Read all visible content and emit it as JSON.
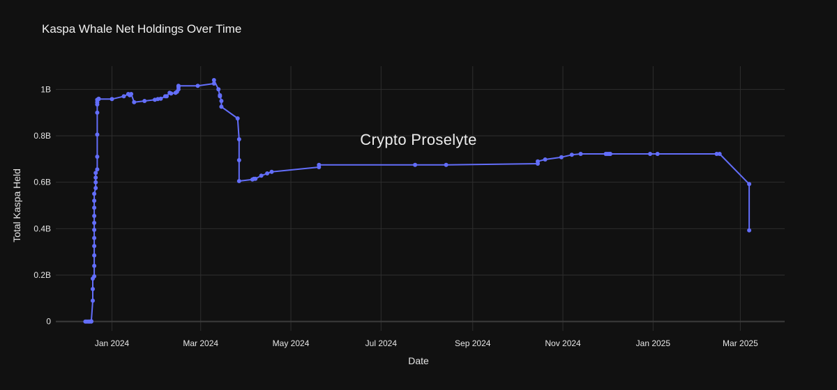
{
  "chart_data": {
    "type": "line",
    "title": "Kaspa Whale Net Holdings Over Time",
    "xlabel": "Date",
    "ylabel": "Total Kaspa Held",
    "watermark": "Crypto Proselyte",
    "grid": true,
    "x_ticks": [
      "Jan 2024",
      "Mar 2024",
      "May 2024",
      "Jul 2024",
      "Sep 2024",
      "Nov 2024",
      "Jan 2025",
      "Mar 2025"
    ],
    "x_tick_dates": [
      "2024-01-01",
      "2024-03-01",
      "2024-05-01",
      "2024-07-01",
      "2024-09-01",
      "2024-11-01",
      "2025-01-01",
      "2025-03-01"
    ],
    "xlim": [
      "2023-11-24",
      "2025-03-31"
    ],
    "y_ticks": [
      "0",
      "0.2B",
      "0.4B",
      "0.6B",
      "0.8B",
      "1B"
    ],
    "y_tick_values": [
      0,
      200000000,
      400000000,
      600000000,
      800000000,
      1000000000
    ],
    "ylim": [
      -40000000,
      1100000000
    ],
    "series": [
      {
        "color": "#636efa",
        "x": [
          "2023-12-14",
          "2023-12-15",
          "2023-12-16",
          "2023-12-17",
          "2023-12-18",
          "2023-12-18",
          "2023-12-19",
          "2023-12-19",
          "2023-12-19",
          "2023-12-20",
          "2023-12-20",
          "2023-12-20",
          "2023-12-20",
          "2023-12-20",
          "2023-12-20",
          "2023-12-20",
          "2023-12-20",
          "2023-12-20",
          "2023-12-20",
          "2023-12-20",
          "2023-12-21",
          "2023-12-21",
          "2023-12-21",
          "2023-12-21",
          "2023-12-22",
          "2023-12-22",
          "2023-12-22",
          "2023-12-22",
          "2023-12-22",
          "2023-12-22",
          "2023-12-22",
          "2023-12-23",
          "2023-12-23",
          "2024-01-01",
          "2024-01-09",
          "2024-01-12",
          "2024-01-13",
          "2024-01-14",
          "2024-01-16",
          "2024-01-23",
          "2024-01-30",
          "2024-02-01",
          "2024-02-03",
          "2024-02-06",
          "2024-02-07",
          "2024-02-09",
          "2024-02-10",
          "2024-02-13",
          "2024-02-14",
          "2024-02-15",
          "2024-02-15",
          "2024-02-15",
          "2024-02-28",
          "2024-03-10",
          "2024-03-10",
          "2024-03-13",
          "2024-03-14",
          "2024-03-14",
          "2024-03-15",
          "2024-03-15",
          "2024-03-26",
          "2024-03-27",
          "2024-03-27",
          "2024-03-27",
          "2024-04-05",
          "2024-04-06",
          "2024-04-07",
          "2024-04-11",
          "2024-04-15",
          "2024-04-18",
          "2024-05-20",
          "2024-05-20",
          "2024-07-24",
          "2024-08-14",
          "2024-10-15",
          "2024-10-15",
          "2024-10-20",
          "2024-10-31",
          "2024-11-07",
          "2024-11-13",
          "2024-11-30",
          "2024-12-01",
          "2024-12-02",
          "2024-12-03",
          "2024-12-03",
          "2024-12-30",
          "2025-01-04",
          "2025-02-13",
          "2025-02-15",
          "2025-03-07",
          "2025-03-07"
        ],
        "y": [
          0,
          0,
          0,
          0,
          0,
          1000000,
          90000000,
          140000000,
          185000000,
          195000000,
          240000000,
          285000000,
          325000000,
          360000000,
          395000000,
          425000000,
          455000000,
          490000000,
          520000000,
          550000000,
          575000000,
          600000000,
          620000000,
          640000000,
          655000000,
          710000000,
          805000000,
          900000000,
          935000000,
          945000000,
          955000000,
          960000000,
          958000000,
          958000000,
          970000000,
          980000000,
          975000000,
          980000000,
          945000000,
          950000000,
          955000000,
          958000000,
          960000000,
          970000000,
          970000000,
          985000000,
          982000000,
          985000000,
          990000000,
          1000000000,
          1010000000,
          1015000000,
          1015000000,
          1025000000,
          1040000000,
          1000000000,
          970000000,
          975000000,
          950000000,
          925000000,
          875000000,
          785000000,
          695000000,
          605000000,
          612000000,
          615000000,
          615000000,
          628000000,
          638000000,
          645000000,
          665000000,
          675000000,
          675000000,
          675000000,
          680000000,
          690000000,
          698000000,
          708000000,
          718000000,
          722000000,
          722000000,
          722000000,
          722000000,
          722000000,
          722000000,
          722000000,
          722000000,
          722000000,
          722000000,
          592000000,
          393000000
        ]
      }
    ]
  }
}
